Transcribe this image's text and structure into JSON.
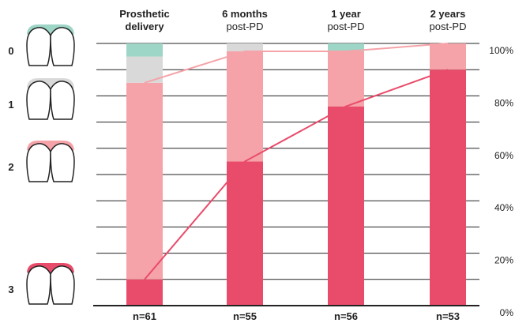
{
  "chart_data": {
    "type": "bar",
    "stacked": true,
    "categories": [
      {
        "line1": "Prosthetic",
        "line2": "delivery",
        "line2_bold": true,
        "n": "n=61"
      },
      {
        "line1": "6 months",
        "line2": "post-PD",
        "line2_bold": false,
        "n": "n=55"
      },
      {
        "line1": "1 year",
        "line2": "post-PD",
        "line2_bold": false,
        "n": "n=56"
      },
      {
        "line1": "2 years",
        "line2": "post-PD",
        "line2_bold": false,
        "n": "n=53"
      }
    ],
    "series": [
      {
        "name": "3",
        "color": "#e94c6b",
        "values": [
          10,
          55,
          76,
          90
        ]
      },
      {
        "name": "2",
        "color": "#f5a3a8",
        "values": [
          75,
          42,
          21,
          10
        ]
      },
      {
        "name": "1",
        "color": "#d9d9d9",
        "values": [
          10,
          3,
          0,
          0
        ]
      },
      {
        "name": "0",
        "color": "#9dd5c6",
        "values": [
          5,
          0,
          3,
          0
        ]
      }
    ],
    "connectors": [
      {
        "series_boundary": "3",
        "color": "#e94c6b"
      },
      {
        "series_boundary": "2",
        "color": "#f5a3a8"
      }
    ],
    "yticks": [
      "0%",
      "20%",
      "40%",
      "60%",
      "80%",
      "100%"
    ],
    "ylim": [
      0,
      100
    ],
    "gridlines": 10,
    "legend": [
      {
        "label": "0",
        "icon": "teeth-gingiva-0-icon",
        "gum_color": "#9dd5c6"
      },
      {
        "label": "1",
        "icon": "teeth-gingiva-1-icon",
        "gum_color": "#d9d9d9"
      },
      {
        "label": "2",
        "icon": "teeth-gingiva-2-icon",
        "gum_color": "#f5a3a8"
      },
      {
        "label": "3",
        "icon": "teeth-gingiva-3-icon",
        "gum_color": "#e94c6b"
      }
    ]
  }
}
